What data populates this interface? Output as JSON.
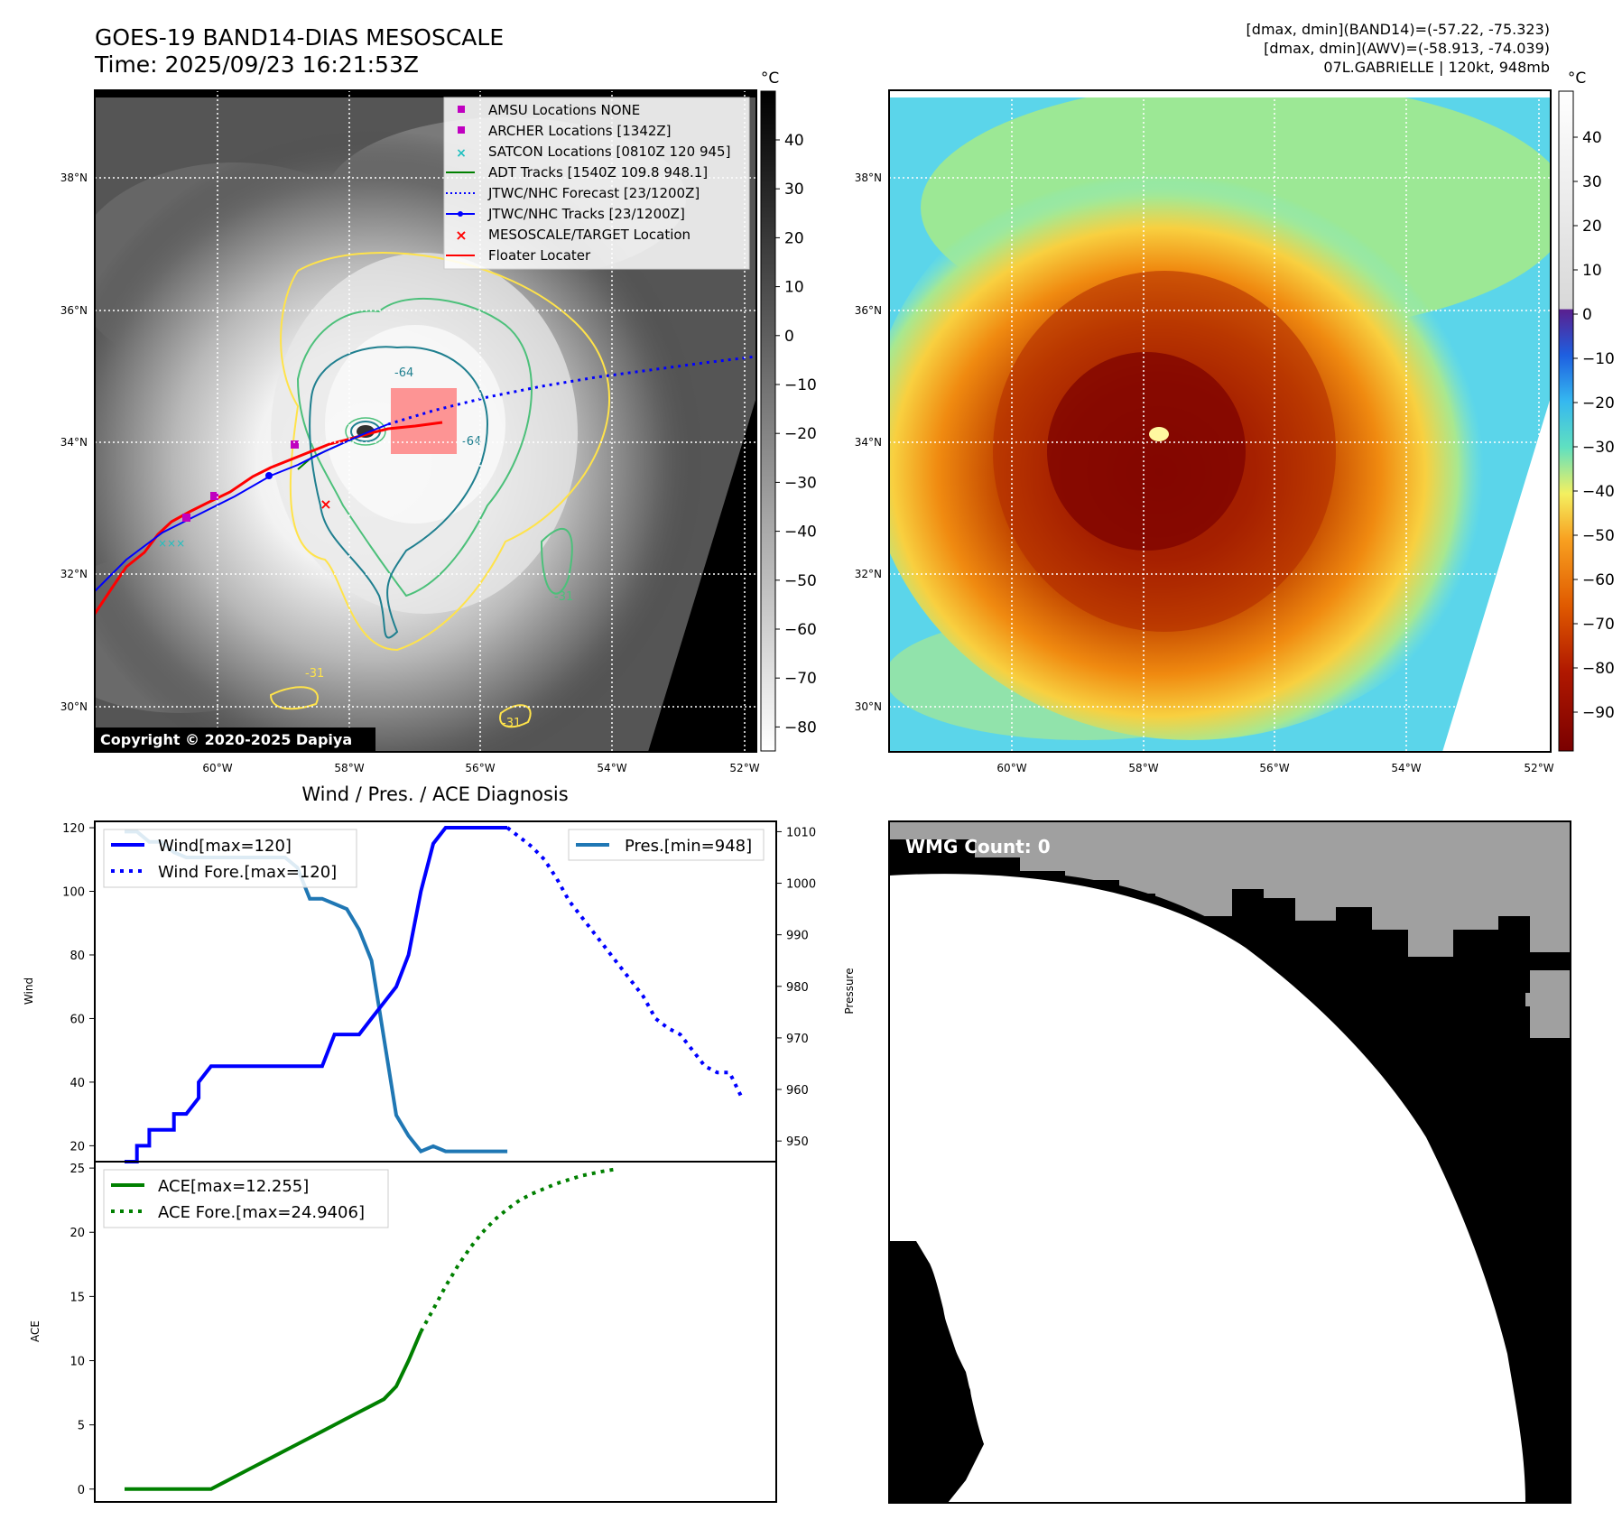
{
  "header": {
    "title_line1": "GOES-19 BAND14-DIAS MESOSCALE",
    "title_line2": "Time: 2025/09/23 16:21:53Z",
    "info_line1": "[dmax, dmin](BAND14)=(-57.22, -75.323)",
    "info_line2": "[dmax, dmin](AWV)=(-58.913, -74.039)",
    "info_line3": "07L.GABRIELLE | 120kt, 948mb"
  },
  "map": {
    "lat_labels": [
      "38°N",
      "36°N",
      "34°N",
      "32°N",
      "30°N"
    ],
    "lon_labels": [
      "60°W",
      "58°W",
      "56°W",
      "54°W",
      "52°W"
    ],
    "copyright": "Copyright © 2020-2025 Dapiya",
    "contour_labels": [
      "-64",
      "-64",
      "-31",
      "-31",
      "-31"
    ],
    "legend": [
      {
        "label": "AMSU Locations NONE",
        "marker": "square",
        "color": "#c000c0"
      },
      {
        "label": "ARCHER Locations [1342Z]",
        "marker": "square",
        "color": "#c000c0"
      },
      {
        "label": "SATCON Locations [0810Z 120 945]",
        "marker": "x",
        "color": "#20c0c0"
      },
      {
        "label": "ADT Tracks [1540Z 109.8 948.1]",
        "marker": "line",
        "color": "#008000"
      },
      {
        "label": "JTWC/NHC Forecast [23/1200Z]",
        "marker": "dotted",
        "color": "#0000ff"
      },
      {
        "label": "JTWC/NHC Tracks [23/1200Z]",
        "marker": "line-dot",
        "color": "#0000ff"
      },
      {
        "label": "MESOSCALE/TARGET Location",
        "marker": "x",
        "color": "#ff0000"
      },
      {
        "label": "Floater Locater",
        "marker": "line",
        "color": "#ff0000"
      }
    ]
  },
  "colorbar_gray": {
    "unit": "°C",
    "ticks": [
      "40",
      "30",
      "20",
      "10",
      "0",
      "−10",
      "−20",
      "−30",
      "−40",
      "−50",
      "−60",
      "−70",
      "−80"
    ]
  },
  "colorbar_color": {
    "unit": "°C",
    "ticks": [
      "40",
      "30",
      "20",
      "10",
      "0",
      "−10",
      "−20",
      "−30",
      "−40",
      "−50",
      "−60",
      "−70",
      "−80",
      "−90"
    ]
  },
  "wmg": {
    "label": "WMG Count: 0"
  },
  "colors": {
    "wind": "#0000ff",
    "pressure": "#1f77b4",
    "ace": "#008000",
    "track_red": "#ff0000",
    "contour_yellow": "#ffe34a",
    "contour_teal": "#1f7f8f",
    "contour_green": "#4cc07a"
  },
  "chart_data": [
    {
      "type": "line",
      "title": "Wind / Pres. / ACE Diagnosis",
      "xlabel": "",
      "ylabel": "Wind",
      "y2label": "Pressure",
      "ylim": [
        15,
        122
      ],
      "y2lim": [
        946,
        1012
      ],
      "yticks": [
        "20",
        "40",
        "60",
        "80",
        "100",
        "120"
      ],
      "y2ticks": [
        "950",
        "960",
        "970",
        "980",
        "990",
        "1000",
        "1010"
      ],
      "series": [
        {
          "name": "Wind[max=120]",
          "axis": "left",
          "style": "solid",
          "x": [
            0,
            1,
            1,
            2,
            2,
            3,
            3,
            4,
            4,
            5,
            5,
            6,
            6,
            7,
            7,
            8,
            8,
            9,
            10,
            11,
            12,
            13,
            14,
            15,
            16,
            17,
            18,
            19,
            20,
            21,
            22,
            23,
            24,
            25,
            26,
            27,
            28,
            29,
            30,
            31
          ],
          "values": [
            15,
            15,
            20,
            20,
            25,
            25,
            25,
            25,
            30,
            30,
            30,
            35,
            40,
            45,
            45,
            45,
            45,
            45,
            45,
            45,
            45,
            45,
            45,
            45,
            45,
            55,
            55,
            55,
            60,
            65,
            70,
            80,
            100,
            115,
            120,
            120,
            120,
            120,
            120,
            120
          ]
        },
        {
          "name": "Wind Fore.[max=120]",
          "axis": "left",
          "style": "dotted",
          "x": [
            31,
            32,
            33,
            34,
            35,
            36,
            37,
            38,
            39,
            40,
            41,
            42,
            43,
            44,
            45,
            46,
            47,
            48,
            49,
            50
          ],
          "values": [
            120,
            117,
            114,
            110,
            104,
            97,
            92,
            87,
            82,
            77,
            72,
            67,
            60,
            57,
            55,
            50,
            45,
            43,
            43,
            35
          ]
        },
        {
          "name": "Pres.[min=948]",
          "axis": "right",
          "style": "solid",
          "x": [
            0,
            1,
            2,
            3,
            4,
            5,
            6,
            7,
            8,
            9,
            10,
            11,
            12,
            13,
            14,
            15,
            16,
            17,
            18,
            19,
            20,
            21,
            22,
            23,
            24,
            25,
            26,
            27,
            28,
            29,
            30,
            31
          ],
          "values": [
            1010,
            1010,
            1008,
            1008,
            1006,
            1005,
            1005,
            1005,
            1005,
            1005,
            1005,
            1005,
            1005,
            1005,
            1003,
            997,
            997,
            996,
            995,
            991,
            985,
            970,
            955,
            951,
            948,
            949,
            948,
            948,
            948,
            948,
            948,
            948
          ]
        }
      ]
    },
    {
      "type": "line",
      "ylabel": "ACE",
      "ylim": [
        -1,
        25.5
      ],
      "yticks": [
        "0",
        "5",
        "10",
        "15",
        "20",
        "25"
      ],
      "series": [
        {
          "name": "ACE[max=12.255]",
          "style": "solid",
          "x": [
            0,
            2,
            4,
            6,
            7,
            8,
            10,
            12,
            14,
            16,
            17,
            18,
            19,
            20,
            21,
            22,
            23,
            24
          ],
          "values": [
            0,
            0,
            0,
            0,
            0,
            0.5,
            1.5,
            2.5,
            3.5,
            4.5,
            5,
            5.5,
            6,
            6.5,
            7,
            8,
            10,
            12.255
          ]
        },
        {
          "name": "ACE Fore.[max=24.9406]",
          "style": "dotted",
          "x": [
            24,
            25,
            26,
            27,
            28,
            29,
            30,
            31,
            32,
            33,
            34,
            35,
            36,
            37,
            38,
            39,
            40
          ],
          "values": [
            12.255,
            14,
            15.8,
            17.4,
            18.8,
            20,
            21,
            21.8,
            22.5,
            23,
            23.4,
            23.8,
            24.1,
            24.4,
            24.6,
            24.8,
            24.9406
          ]
        }
      ]
    }
  ]
}
